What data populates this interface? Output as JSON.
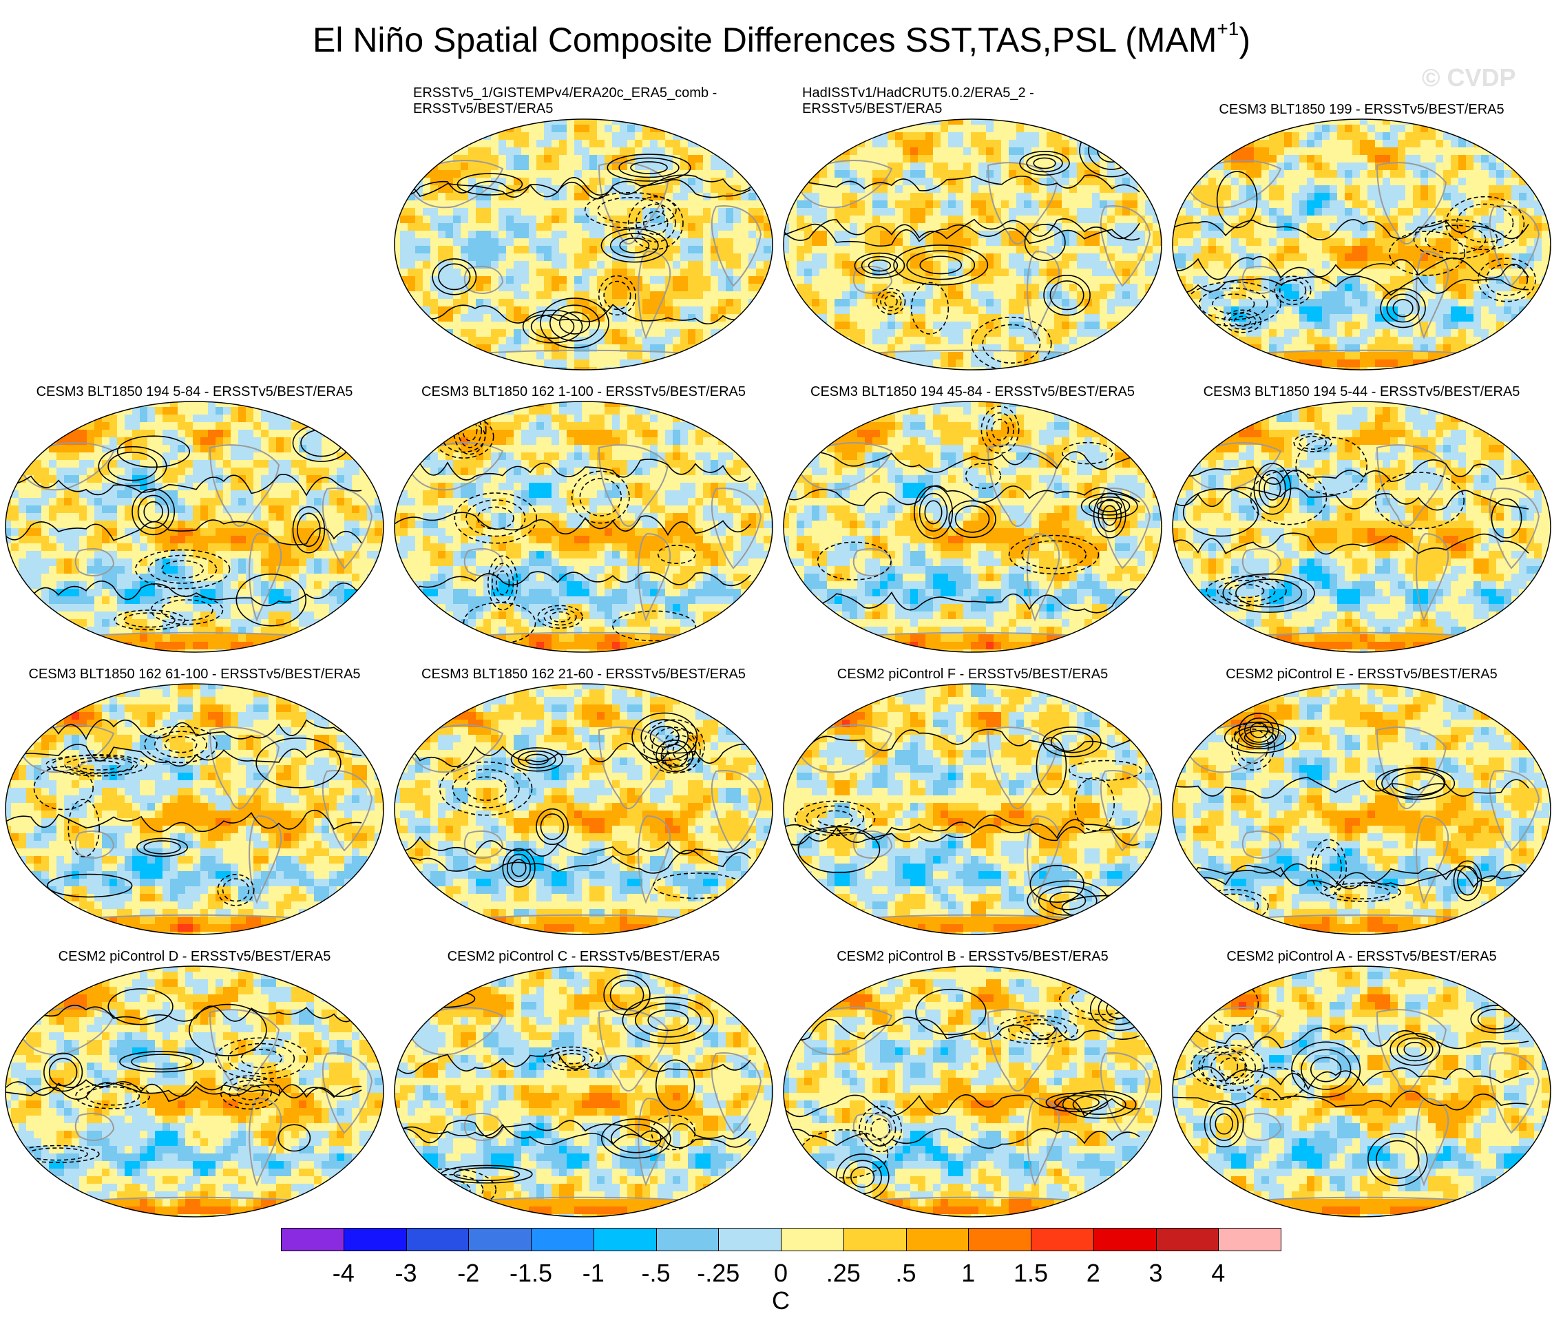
{
  "title_main": "El Niño Spatial Composite Differences SST,TAS,PSL (MAM",
  "title_sup": "+1",
  "title_close": ")",
  "watermark": "© CVDP",
  "panels": [
    {
      "title_line1": "ERSSTv5_1/GISTEMPv4/ERA20c_ERA5_comb -",
      "title_line2": "ERSSTv5/BEST/ERA5",
      "pattern": "obs",
      "seed": 3
    },
    {
      "title_line1": "HadISSTv1/HadCRUT5.0.2/ERA5_2 -",
      "title_line2": "ERSSTv5/BEST/ERA5",
      "pattern": "obs2",
      "seed": 7
    },
    {
      "title": "CESM3 BLT1850 199 - ERSSTv5/BEST/ERA5",
      "pattern": "model",
      "seed": 11
    },
    {
      "title": "CESM3 BLT1850 194 5-84 - ERSSTv5/BEST/ERA5",
      "pattern": "model",
      "seed": 13
    },
    {
      "title": "CESM3 BLT1850 162 1-100 - ERSSTv5/BEST/ERA5",
      "pattern": "model",
      "seed": 17
    },
    {
      "title": "CESM3 BLT1850 194 45-84 - ERSSTv5/BEST/ERA5",
      "pattern": "model",
      "seed": 19
    },
    {
      "title": "CESM3 BLT1850 194 5-44 - ERSSTv5/BEST/ERA5",
      "pattern": "model",
      "seed": 23
    },
    {
      "title": "CESM3 BLT1850 162 61-100 - ERSSTv5/BEST/ERA5",
      "pattern": "model",
      "seed": 29
    },
    {
      "title": "CESM3 BLT1850 162 21-60 - ERSSTv5/BEST/ERA5",
      "pattern": "model",
      "seed": 31
    },
    {
      "title": "CESM2 piControl F - ERSSTv5/BEST/ERA5",
      "pattern": "model",
      "seed": 37
    },
    {
      "title": "CESM2 piControl E - ERSSTv5/BEST/ERA5",
      "pattern": "model",
      "seed": 41
    },
    {
      "title": "CESM2 piControl D - ERSSTv5/BEST/ERA5",
      "pattern": "model",
      "seed": 43
    },
    {
      "title": "CESM2 piControl C - ERSSTv5/BEST/ERA5",
      "pattern": "model",
      "seed": 47
    },
    {
      "title": "CESM2 piControl B - ERSSTv5/BEST/ERA5",
      "pattern": "model",
      "seed": 53
    },
    {
      "title": "CESM2 piControl A - ERSSTv5/BEST/ERA5",
      "pattern": "model",
      "seed": 59
    }
  ],
  "colorbar": {
    "colors": [
      "#8a2be2",
      "#1414ff",
      "#2850e6",
      "#3c78e6",
      "#1e90ff",
      "#00bfff",
      "#78c8f0",
      "#b4e0f5",
      "#fff599",
      "#ffd232",
      "#ffaa00",
      "#ff7800",
      "#ff3c14",
      "#e60000",
      "#c81e1e",
      "#ffb4b4"
    ],
    "labels": [
      "-4",
      "-3",
      "-2",
      "-1.5",
      "-1",
      "-.5",
      "-.25",
      "0",
      ".25",
      ".5",
      "1",
      "1.5",
      "2",
      "3",
      "4"
    ],
    "unit": "C"
  }
}
